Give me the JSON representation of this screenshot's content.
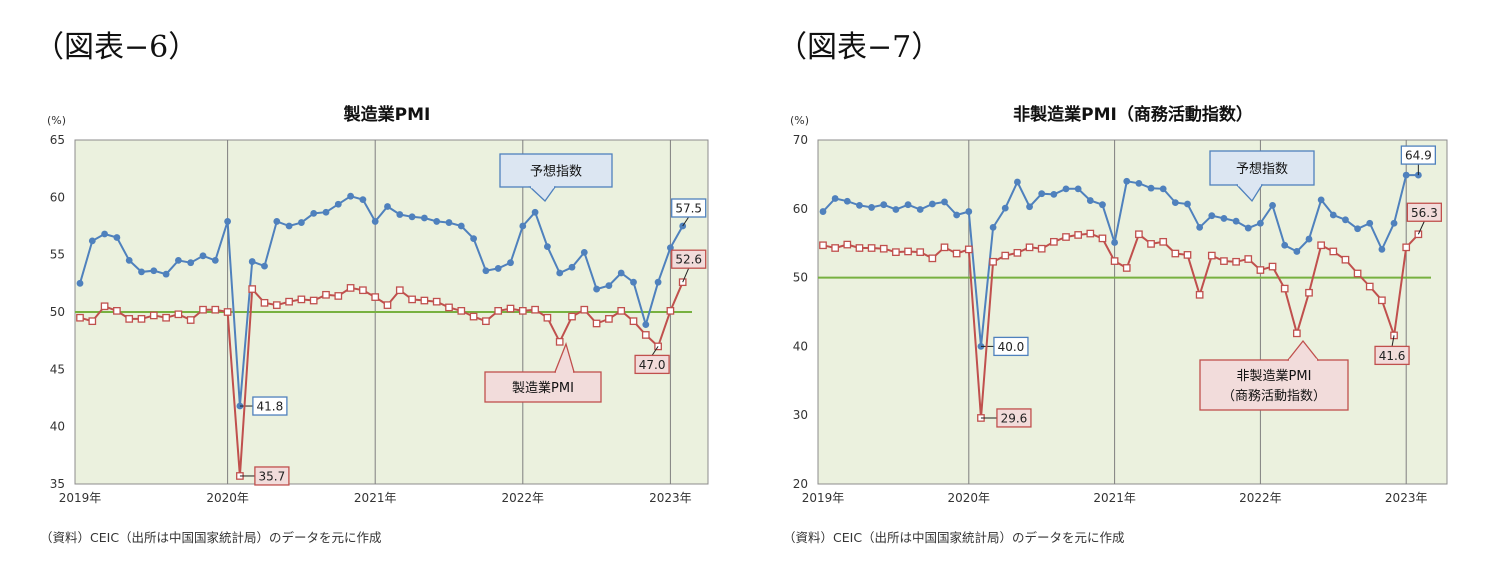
{
  "figures": [
    {
      "label": "（図表−6）",
      "source": "（資料）CEIC（出所は中国国家統計局）のデータを元に作成",
      "chart_data": {
        "type": "line",
        "title": "製造業PMI",
        "y_unit": "(%)",
        "ylim": [
          35,
          65
        ],
        "y_ticks": [
          "35",
          "40",
          "45",
          "50",
          "55",
          "60",
          "65"
        ],
        "x_tick_labels": [
          "2019年",
          "2020年",
          "2021年",
          "2022年",
          "2023年"
        ],
        "x_start": "2019-01",
        "reference_line": 50,
        "grid": "vertical lines at each January",
        "series": [
          {
            "name": "予想指数",
            "color": "#4f81bd",
            "values": [
              52.5,
              56.2,
              56.8,
              56.5,
              54.5,
              53.5,
              53.6,
              53.3,
              54.5,
              54.3,
              54.9,
              54.5,
              57.9,
              41.8,
              54.4,
              54.0,
              57.9,
              57.5,
              57.8,
              58.6,
              58.7,
              59.4,
              60.1,
              59.8,
              57.9,
              59.2,
              58.5,
              58.3,
              58.2,
              57.9,
              57.8,
              57.5,
              56.4,
              53.6,
              53.8,
              54.3,
              57.5,
              58.7,
              55.7,
              53.4,
              53.9,
              55.2,
              52.0,
              52.3,
              53.4,
              52.6,
              48.9,
              52.6,
              55.6,
              57.5
            ],
            "callouts": [
              {
                "index": 13,
                "label": "41.8"
              },
              {
                "index": 49,
                "label": "57.5"
              }
            ]
          },
          {
            "name": "製造業PMI",
            "color": "#c0504d",
            "values": [
              49.5,
              49.2,
              50.5,
              50.1,
              49.4,
              49.4,
              49.7,
              49.5,
              49.8,
              49.3,
              50.2,
              50.2,
              50.0,
              35.7,
              52.0,
              50.8,
              50.6,
              50.9,
              51.1,
              51.0,
              51.5,
              51.4,
              52.1,
              51.9,
              51.3,
              50.6,
              51.9,
              51.1,
              51.0,
              50.9,
              50.4,
              50.1,
              49.6,
              49.2,
              50.1,
              50.3,
              50.1,
              50.2,
              49.5,
              47.4,
              49.6,
              50.2,
              49.0,
              49.4,
              50.1,
              49.2,
              48.0,
              47.0,
              50.1,
              52.6
            ],
            "callouts": [
              {
                "index": 13,
                "label": "35.7"
              },
              {
                "index": 47,
                "label": "47.0"
              },
              {
                "index": 49,
                "label": "52.6"
              }
            ]
          }
        ],
        "annotations": [
          "予想指数",
          "製造業PMI"
        ]
      }
    },
    {
      "label": "（図表−7）",
      "source": "（資料）CEIC（出所は中国国家統計局）のデータを元に作成",
      "chart_data": {
        "type": "line",
        "title": "非製造業PMI（商務活動指数）",
        "y_unit": "(%)",
        "ylim": [
          20,
          70
        ],
        "y_ticks": [
          "20",
          "30",
          "40",
          "50",
          "60",
          "70"
        ],
        "x_tick_labels": [
          "2019年",
          "2020年",
          "2021年",
          "2022年",
          "2023年"
        ],
        "x_start": "2019-01",
        "reference_line": 50,
        "grid": "vertical lines at each January",
        "series": [
          {
            "name": "予想指数",
            "color": "#4f81bd",
            "values": [
              59.6,
              61.5,
              61.1,
              60.5,
              60.2,
              60.6,
              59.9,
              60.6,
              59.9,
              60.7,
              61.0,
              59.1,
              59.6,
              40.0,
              57.3,
              60.1,
              63.9,
              60.3,
              62.2,
              62.1,
              62.9,
              62.9,
              61.2,
              60.6,
              55.1,
              64.0,
              63.7,
              63.0,
              62.9,
              60.9,
              60.7,
              57.3,
              59.0,
              58.6,
              58.2,
              57.2,
              57.9,
              60.5,
              54.7,
              53.8,
              55.6,
              61.3,
              59.1,
              58.4,
              57.1,
              57.9,
              54.1,
              57.9,
              64.9,
              64.9
            ],
            "callouts": [
              {
                "index": 13,
                "label": "40.0"
              },
              {
                "index": 49,
                "label": "64.9"
              }
            ]
          },
          {
            "name": "非製造業PMI（商務活動指数）",
            "color": "#c0504d",
            "values": [
              54.7,
              54.3,
              54.8,
              54.3,
              54.3,
              54.2,
              53.7,
              53.8,
              53.7,
              52.8,
              54.4,
              53.5,
              54.1,
              29.6,
              52.3,
              53.2,
              53.6,
              54.4,
              54.2,
              55.2,
              55.9,
              56.2,
              56.4,
              55.7,
              52.4,
              51.4,
              56.3,
              54.9,
              55.2,
              53.5,
              53.3,
              47.5,
              53.2,
              52.4,
              52.3,
              52.7,
              51.1,
              51.6,
              48.4,
              41.9,
              47.8,
              54.7,
              53.8,
              52.6,
              50.6,
              48.7,
              46.7,
              41.6,
              54.4,
              56.3
            ],
            "callouts": [
              {
                "index": 13,
                "label": "29.6"
              },
              {
                "index": 47,
                "label": "41.6"
              },
              {
                "index": 49,
                "label": "56.3"
              }
            ]
          }
        ],
        "annotations": [
          "予想指数",
          "非製造業PMI",
          "（商務活動指数）"
        ]
      }
    }
  ]
}
